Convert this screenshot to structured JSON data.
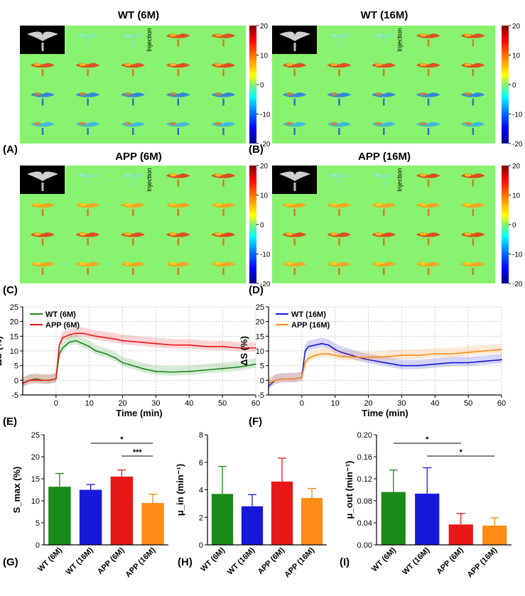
{
  "panels": {
    "A": {
      "label": "(A)",
      "title": "WT (6M)"
    },
    "B": {
      "label": "(B)",
      "title": "WT (16M)"
    },
    "C": {
      "label": "(C)",
      "title": "APP (6M)"
    },
    "D": {
      "label": "(D)",
      "title": "APP (16M)"
    },
    "E": {
      "label": "(E)"
    },
    "F": {
      "label": "(F)"
    },
    "G": {
      "label": "(G)"
    },
    "H": {
      "label": "(H)"
    },
    "I": {
      "label": "(I)"
    }
  },
  "injection_label": "Injection",
  "colorbar_ticks": [
    "20",
    "10",
    "0",
    "-10",
    "-20"
  ],
  "colors": {
    "map_background": "#88f26f",
    "WT (6M)": "#1a8a1a",
    "WT (16M)": "#1818d8",
    "APP (6M)": "#e81818",
    "APP (16M)": "#ff8c14"
  },
  "chart_data": [
    {
      "id": "E",
      "type": "line",
      "xlabel": "Time (min)",
      "ylabel": "ΔS (%)",
      "xlim": [
        -10,
        60
      ],
      "ylim": [
        -5,
        25
      ],
      "xticks": [
        0,
        10,
        20,
        30,
        40,
        50,
        60
      ],
      "yticks": [
        -5,
        0,
        5,
        10,
        15,
        20,
        25
      ],
      "legend": "top-left",
      "series": [
        {
          "name": "WT (6M)",
          "x": [
            -10,
            -8,
            -6,
            -4,
            -2,
            0,
            1,
            2,
            4,
            6,
            8,
            10,
            12,
            15,
            18,
            20,
            23,
            26,
            30,
            35,
            40,
            45,
            50,
            55,
            60
          ],
          "values": [
            -1,
            0,
            0.5,
            0,
            0,
            0.5,
            9,
            11,
            13,
            13.5,
            12.5,
            11.5,
            10,
            9,
            7.5,
            6,
            5,
            4,
            3,
            2.8,
            3,
            3.5,
            4,
            4.5,
            5.5
          ]
        },
        {
          "name": "APP (6M)",
          "x": [
            -10,
            -8,
            -6,
            -4,
            -2,
            0,
            1,
            2,
            4,
            6,
            8,
            10,
            12,
            15,
            18,
            20,
            25,
            30,
            35,
            40,
            45,
            50,
            55,
            60
          ],
          "values": [
            -1,
            0,
            0,
            0,
            0,
            0.5,
            12,
            14.5,
            15.5,
            16,
            16,
            15.5,
            15,
            14.5,
            14,
            13.5,
            13,
            12.5,
            12,
            12,
            11.5,
            11.5,
            11,
            11
          ]
        }
      ]
    },
    {
      "id": "F",
      "type": "line",
      "xlabel": "Time (min)",
      "ylabel": "ΔS (%)",
      "xlim": [
        -10,
        60
      ],
      "ylim": [
        -5,
        25
      ],
      "xticks": [
        0,
        10,
        20,
        30,
        40,
        50,
        60
      ],
      "yticks": [
        -5,
        0,
        5,
        10,
        15,
        20,
        25
      ],
      "legend": "top-left",
      "series": [
        {
          "name": "WT (16M)",
          "x": [
            -10,
            -8,
            -6,
            -4,
            -2,
            0,
            1,
            2,
            4,
            6,
            8,
            10,
            12,
            15,
            18,
            20,
            25,
            30,
            35,
            40,
            45,
            50,
            55,
            60
          ],
          "values": [
            -2,
            0,
            0.5,
            0.5,
            0.5,
            1,
            10,
            11.5,
            12,
            12.5,
            12,
            10.5,
            9.5,
            8.5,
            7.5,
            7,
            6,
            5,
            5,
            5.5,
            6,
            6,
            6.5,
            7
          ]
        },
        {
          "name": "APP (16M)",
          "x": [
            -10,
            -8,
            -6,
            -4,
            -2,
            0,
            1,
            2,
            4,
            6,
            8,
            10,
            12,
            15,
            18,
            20,
            25,
            30,
            35,
            40,
            45,
            50,
            55,
            60
          ],
          "values": [
            -1,
            0,
            0.5,
            0.5,
            0.5,
            1,
            6,
            7.5,
            8.5,
            9,
            9,
            8.5,
            8,
            8,
            7.8,
            7.8,
            8,
            8.5,
            8.5,
            9,
            9,
            9.5,
            10,
            10.5
          ]
        }
      ]
    },
    {
      "id": "G",
      "type": "bar",
      "ylabel": "S_max (%)",
      "ylim": [
        0,
        25
      ],
      "yticks": [
        0,
        5,
        10,
        15,
        20,
        25
      ],
      "categories": [
        "WT (6M)",
        "WT (16M)",
        "APP (6M)",
        "APP (16M)"
      ],
      "values": [
        13.2,
        12.5,
        15.5,
        9.5
      ],
      "errors": [
        3,
        1.2,
        1.5,
        2
      ],
      "significance": [
        {
          "from": 1,
          "to": 3,
          "label": "*"
        },
        {
          "from": 2,
          "to": 3,
          "label": "***"
        }
      ]
    },
    {
      "id": "H",
      "type": "bar",
      "ylabel": "μ_in (min⁻¹)",
      "ylim": [
        0,
        8
      ],
      "yticks": [
        0,
        2,
        4,
        6,
        8
      ],
      "categories": [
        "WT (6M)",
        "WT (16M)",
        "APP (6M)",
        "APP (16M)"
      ],
      "values": [
        3.7,
        2.8,
        4.6,
        3.4
      ],
      "errors": [
        2,
        0.85,
        1.7,
        0.7
      ],
      "significance": []
    },
    {
      "id": "I",
      "type": "bar",
      "ylabel": "μ_out (min⁻¹)",
      "ylim": [
        0,
        0.2
      ],
      "yticks": [
        0.0,
        0.04,
        0.08,
        0.12,
        0.16,
        0.2
      ],
      "categories": [
        "WT (6M)",
        "WT (16M)",
        "APP (6M)",
        "APP (16M)"
      ],
      "values": [
        0.096,
        0.093,
        0.037,
        0.035
      ],
      "errors": [
        0.04,
        0.047,
        0.02,
        0.014
      ],
      "significance": [
        {
          "from": 0,
          "to": 2,
          "label": "*"
        },
        {
          "from": 1,
          "to": 3,
          "label": "*"
        }
      ]
    }
  ]
}
